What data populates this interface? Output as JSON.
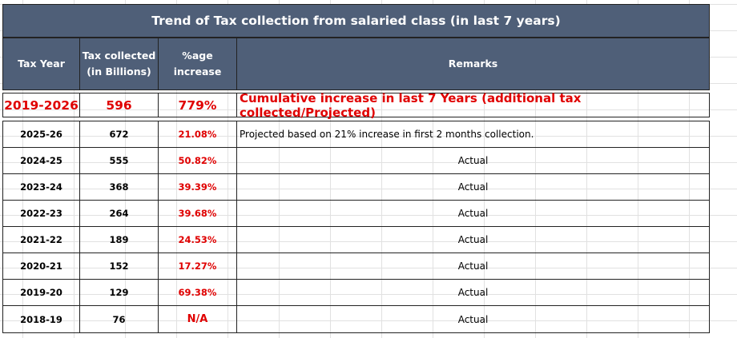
{
  "title": "Trend of Tax collection from salaried class (in last 7 years)",
  "headers": {
    "tax_year": "Tax Year",
    "tax_collected_line1": "Tax collected",
    "tax_collected_line2": "(in Billions)",
    "increase_line1": "%age",
    "increase_line2": "increase",
    "remarks": "Remarks"
  },
  "summary": {
    "period": "2019-2026",
    "amount": "596",
    "increase": "779%",
    "remarks": "Cumulative increase in last 7 Years (additional tax collected/Projected)"
  },
  "rows": [
    {
      "year": "2025-26",
      "collected": "672",
      "increase": "21.08%",
      "remarks": "Projected based on 21% increase in first 2 months collection."
    },
    {
      "year": "2024-25",
      "collected": "555",
      "increase": "50.82%",
      "remarks": "Actual"
    },
    {
      "year": "2023-24",
      "collected": "368",
      "increase": "39.39%",
      "remarks": "Actual"
    },
    {
      "year": "2022-23",
      "collected": "264",
      "increase": "39.68%",
      "remarks": "Actual"
    },
    {
      "year": "2021-22",
      "collected": "189",
      "increase": "24.53%",
      "remarks": "Actual"
    },
    {
      "year": "2020-21",
      "collected": "152",
      "increase": "17.27%",
      "remarks": "Actual"
    },
    {
      "year": "2019-20",
      "collected": "129",
      "increase": "69.38%",
      "remarks": "Actual"
    },
    {
      "year": "2018-19",
      "collected": "76",
      "increase": "N/A",
      "remarks": "Actual"
    }
  ],
  "colors": {
    "header_bg": "#4f5f78",
    "header_text": "#ffffff",
    "accent_red": "#e00000"
  }
}
